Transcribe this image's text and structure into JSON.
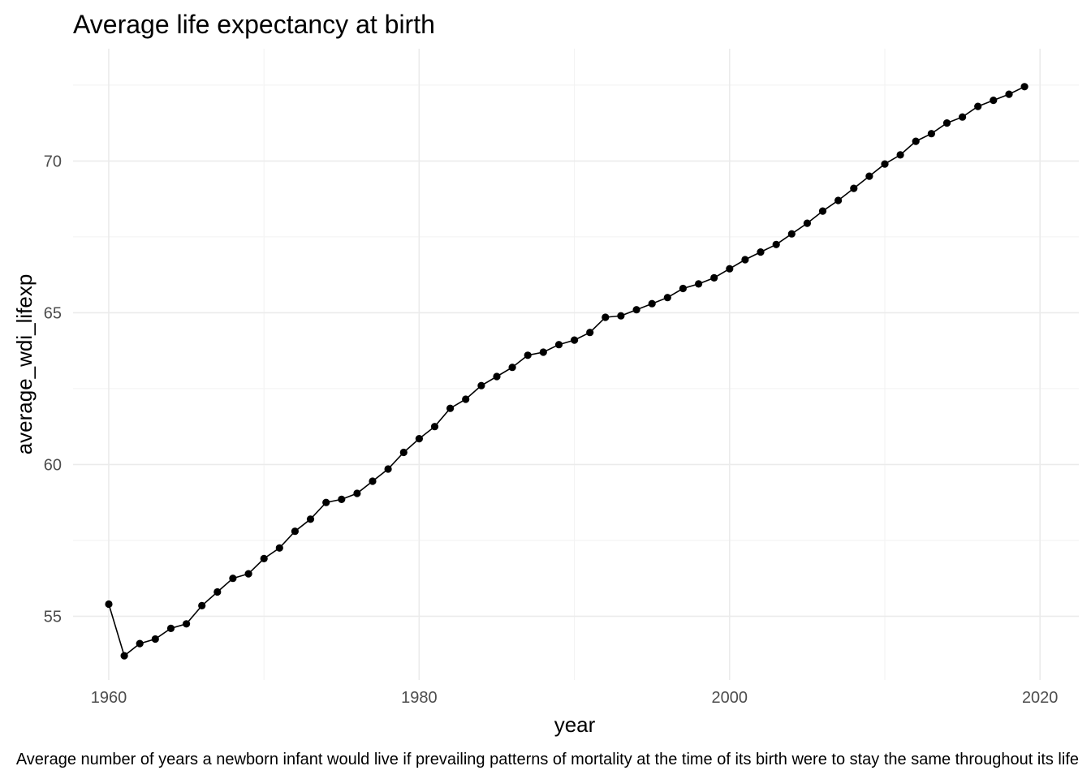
{
  "chart_data": {
    "type": "line",
    "title": "Average life expectancy at birth",
    "xlabel": "year",
    "ylabel": "average_wdi_lifexp",
    "caption": "Average number of years a newborn infant would live if prevailing patterns of mortality at the time of its birth were to stay the same throughout its life",
    "xlim": [
      1957.7,
      2022.5
    ],
    "ylim": [
      52.9,
      73.7
    ],
    "x_ticks": [
      1960,
      1980,
      2000,
      2020
    ],
    "x_tick_labels": [
      "1960",
      "1980",
      "2000",
      "2020"
    ],
    "x_minor_ticks": [
      1970,
      1990,
      2010
    ],
    "y_ticks": [
      55,
      60,
      65,
      70
    ],
    "y_tick_labels": [
      "55",
      "60",
      "65",
      "70"
    ],
    "y_minor_ticks": [
      57.5,
      62.5,
      67.5,
      72.5
    ],
    "grid": true,
    "legend": "none",
    "x": [
      1960,
      1961,
      1962,
      1963,
      1964,
      1965,
      1966,
      1967,
      1968,
      1969,
      1970,
      1971,
      1972,
      1973,
      1974,
      1975,
      1976,
      1977,
      1978,
      1979,
      1980,
      1981,
      1982,
      1983,
      1984,
      1985,
      1986,
      1987,
      1988,
      1989,
      1990,
      1991,
      1992,
      1993,
      1994,
      1995,
      1996,
      1997,
      1998,
      1999,
      2000,
      2001,
      2002,
      2003,
      2004,
      2005,
      2006,
      2007,
      2008,
      2009,
      2010,
      2011,
      2012,
      2013,
      2014,
      2015,
      2016,
      2017,
      2018,
      2019
    ],
    "y": [
      55.4,
      53.7,
      54.1,
      54.25,
      54.6,
      54.75,
      55.35,
      55.8,
      56.25,
      56.4,
      56.9,
      57.25,
      57.8,
      58.2,
      58.75,
      58.85,
      59.05,
      59.45,
      59.85,
      60.4,
      60.85,
      61.25,
      61.85,
      62.15,
      62.6,
      62.9,
      63.2,
      63.6,
      63.7,
      63.95,
      64.1,
      64.35,
      64.85,
      64.9,
      65.1,
      65.3,
      65.5,
      65.8,
      65.95,
      66.15,
      66.45,
      66.75,
      67.0,
      67.25,
      67.6,
      67.95,
      68.35,
      68.7,
      69.1,
      69.5,
      69.9,
      70.2,
      70.65,
      70.9,
      71.25,
      71.45,
      71.8,
      72.0,
      72.2,
      72.45
    ]
  }
}
